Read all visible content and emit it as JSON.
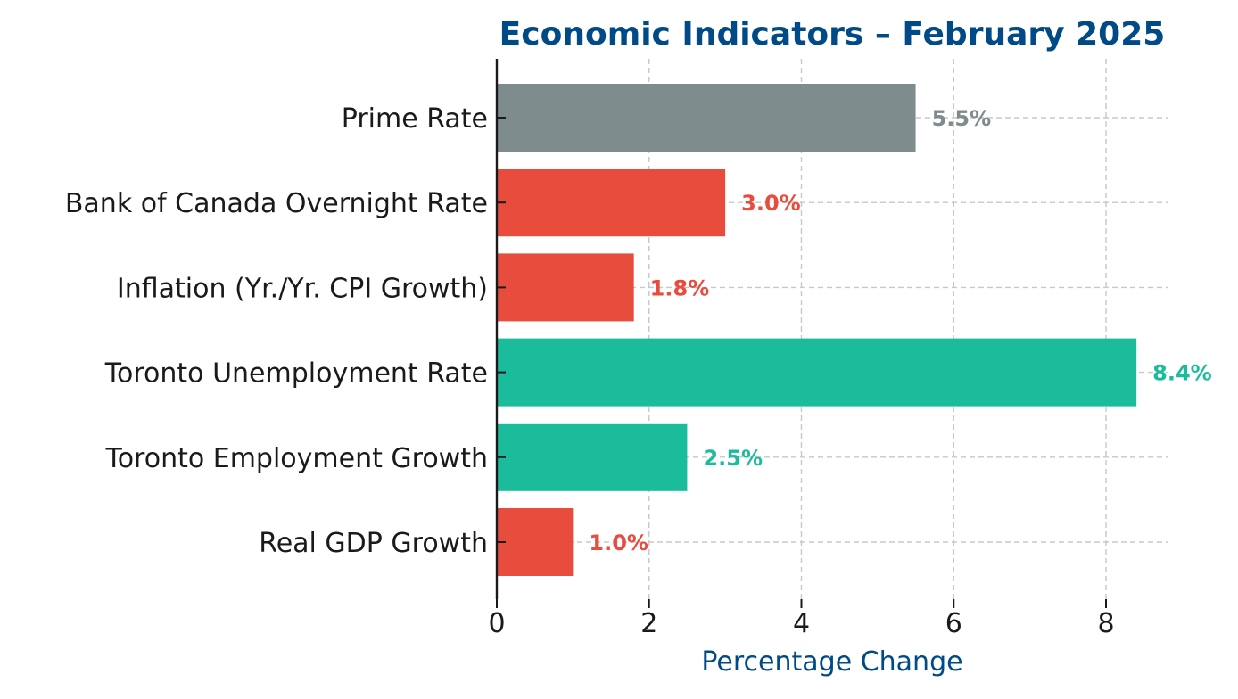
{
  "chart_data": {
    "type": "bar",
    "orientation": "horizontal",
    "title": "Economic Indicators – February 2025",
    "xlabel": "Percentage Change",
    "ylabel": "",
    "categories": [
      "Prime Rate",
      "Bank of Canada Overnight Rate",
      "Inflation (Yr./Yr. CPI Growth)",
      "Toronto Unemployment Rate",
      "Toronto Employment Growth",
      "Real GDP Growth"
    ],
    "values": [
      5.5,
      3.0,
      1.8,
      8.4,
      2.5,
      1.0
    ],
    "value_labels": [
      "5.5%",
      "3.0%",
      "1.8%",
      "8.4%",
      "2.5%",
      "1.0%"
    ],
    "bar_colors": [
      "#7f8c8d",
      "#e74c3c",
      "#e74c3c",
      "#1abc9c",
      "#1abc9c",
      "#e74c3c"
    ],
    "xticks": [
      0,
      2,
      4,
      6,
      8
    ],
    "xtick_labels": [
      "0",
      "2",
      "4",
      "6",
      "8"
    ],
    "xlim": [
      0,
      8.8
    ],
    "grid": true,
    "legend": "none"
  },
  "colors": {
    "title": "#004b87",
    "axis_label": "#004b87",
    "text": "#1a1a1a",
    "axis": "#1a1a1a",
    "grid": "#c8c8c8"
  }
}
